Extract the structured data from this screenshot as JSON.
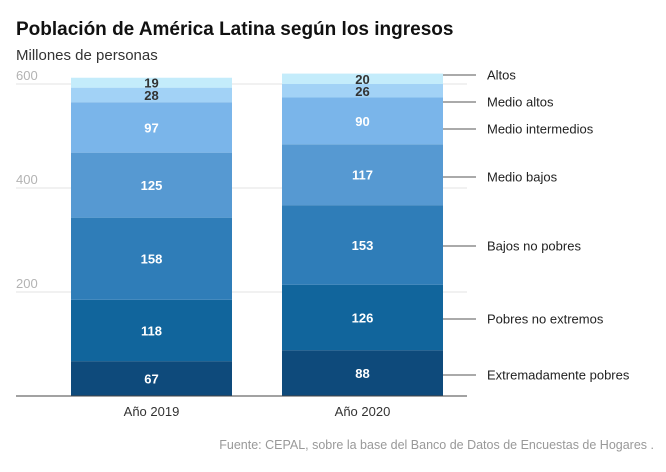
{
  "title": "Población de América Latina según los ingresos",
  "source": "Fuente: CEPAL, sobre la base del Banco de Datos de Encuestas de Hogares .",
  "chart_data": {
    "type": "bar",
    "stacked": true,
    "title": "Población de América Latina según los ingresos",
    "ylabel": "Millones de personas",
    "xlabel": "",
    "ylim": [
      0,
      600
    ],
    "yticks": [
      200,
      400,
      600
    ],
    "grid": true,
    "categories": [
      "Año 2019",
      "Año 2020"
    ],
    "series": [
      {
        "name": "Extremadamente pobres",
        "values": [
          67,
          88
        ],
        "color": "#0e4a7b"
      },
      {
        "name": "Pobres no extremos",
        "values": [
          118,
          126
        ],
        "color": "#11659c"
      },
      {
        "name": "Bajos no pobres",
        "values": [
          158,
          153
        ],
        "color": "#2f7db8"
      },
      {
        "name": "Medio bajos",
        "values": [
          125,
          117
        ],
        "color": "#5699d2"
      },
      {
        "name": "Medio intermedios",
        "values": [
          97,
          90
        ],
        "color": "#7ab5ea"
      },
      {
        "name": "Medio altos",
        "values": [
          28,
          26
        ],
        "color": "#a2d2f6"
      },
      {
        "name": "Altos",
        "values": [
          19,
          20
        ],
        "color": "#c4ecfb"
      }
    ],
    "legend_position": "right"
  }
}
